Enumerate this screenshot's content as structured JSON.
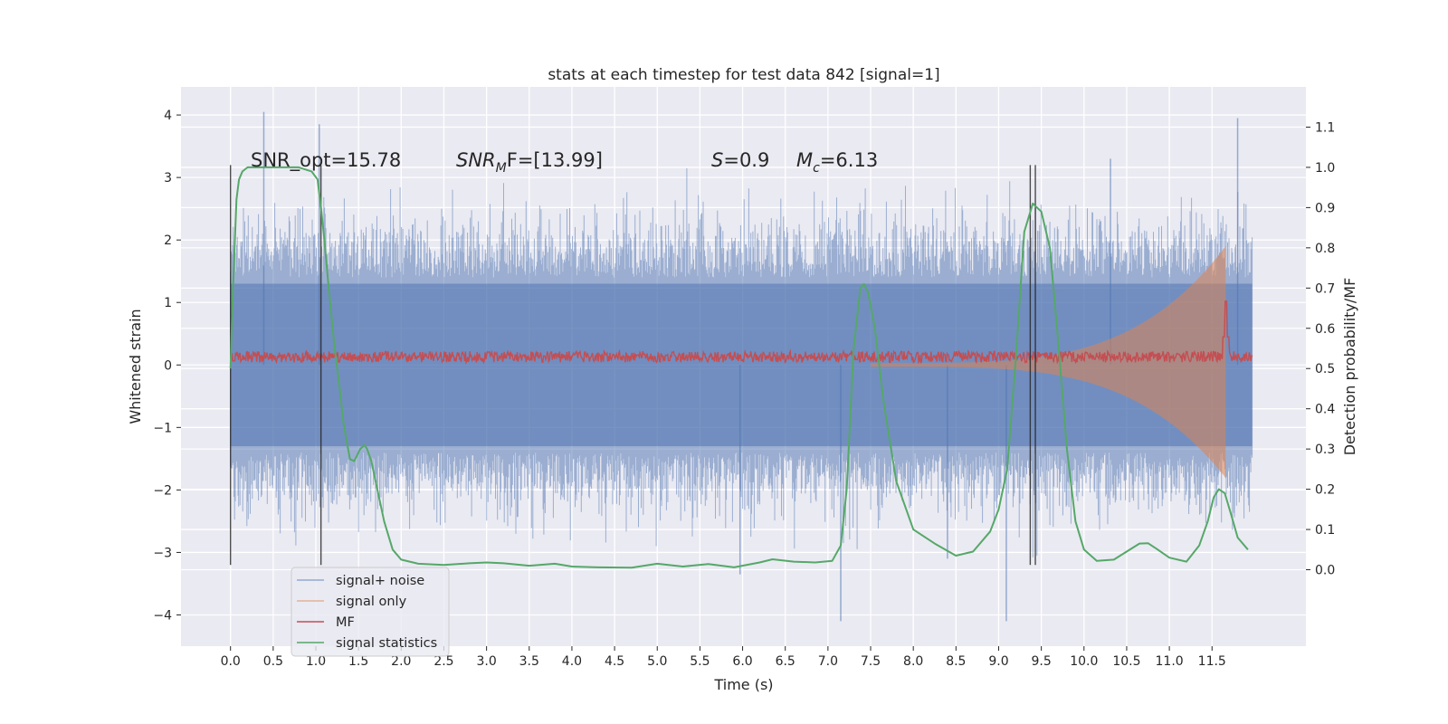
{
  "chart_data": {
    "type": "line",
    "title": "stats at each timestep for test data 842 [signal=1]",
    "xlabel": "Time (s)",
    "ylabel": "Whitened strain",
    "y2label": "Detection probability/MF",
    "xlim": [
      -0.58,
      12.6
    ],
    "ylim": [
      -4.5,
      4.45
    ],
    "y2lim": [
      -0.19,
      1.2
    ],
    "x_ticks": [
      0.0,
      0.5,
      1.0,
      1.5,
      2.0,
      2.5,
      3.0,
      3.5,
      4.0,
      4.5,
      5.0,
      5.5,
      6.0,
      6.5,
      7.0,
      7.5,
      8.0,
      8.5,
      9.0,
      9.5,
      10.0,
      10.5,
      11.0,
      11.5
    ],
    "x_tick_labels": [
      "0.0",
      "0.5",
      "1.0",
      "1.5",
      "2.0",
      "2.5",
      "3.0",
      "3.5",
      "4.0",
      "4.5",
      "5.0",
      "5.5",
      "6.0",
      "6.5",
      "7.0",
      "7.5",
      "8.0",
      "8.5",
      "9.0",
      "9.5",
      "10.0",
      "10.5",
      "11.0",
      "11.5"
    ],
    "y_ticks": [
      -4,
      -3,
      -2,
      -1,
      0,
      1,
      2,
      3,
      4
    ],
    "y_tick_labels": [
      "−4",
      "−3",
      "−2",
      "−1",
      "0",
      "1",
      "2",
      "3",
      "4"
    ],
    "y2_ticks": [
      0.0,
      0.1,
      0.2,
      0.3,
      0.4,
      0.5,
      0.6,
      0.7,
      0.8,
      0.9,
      1.0,
      1.1
    ],
    "y2_tick_labels": [
      "0.0",
      "0.1",
      "0.2",
      "0.3",
      "0.4",
      "0.5",
      "0.6",
      "0.7",
      "0.8",
      "0.9",
      "1.0",
      "1.1"
    ],
    "grid": true,
    "legend_position": "bottom-left",
    "annotations": {
      "snr_opt": "SNR_opt=15.78",
      "snr_mf_base": "SNR",
      "snr_mf_sub": "M",
      "snr_mf_rest": "F=[13.99]",
      "s_label": "S",
      "s_value": "=0.9",
      "mc_label": "M",
      "mc_sub": "c",
      "mc_value": "=6.13"
    },
    "vertical_markers_x": [
      0.0,
      1.06,
      9.37,
      9.43
    ],
    "vertical_marker_range": [
      -3.2,
      3.2
    ],
    "series": [
      {
        "name": "signal+ noise",
        "axis": "left",
        "color": "#4c72b0",
        "description_envelope": {
          "x_range": [
            0.0,
            11.97
          ],
          "core_band": [
            -1.3,
            1.3
          ],
          "peak_up": 4.05,
          "peak_down": -4.1
        },
        "notable_spikes": [
          {
            "x": 0.39,
            "y": 4.05
          },
          {
            "x": 1.04,
            "y": 3.85
          },
          {
            "x": 10.31,
            "y": 3.3
          },
          {
            "x": 11.8,
            "y": 3.95
          },
          {
            "x": 7.15,
            "y": -4.1
          },
          {
            "x": 9.09,
            "y": -4.1
          },
          {
            "x": 5.97,
            "y": -3.35
          },
          {
            "x": 8.4,
            "y": -3.1
          }
        ]
      },
      {
        "name": "signal only",
        "axis": "left",
        "color": "#dd8452",
        "chirp": {
          "start_x": 7.5,
          "end_x": 11.66,
          "amp_start": 0.03,
          "amp_end": 1.9
        }
      },
      {
        "name": "MF",
        "axis": "left",
        "color": "#c44e52",
        "baseline_band": [
          0.04,
          0.22
        ],
        "peak": {
          "x": 11.66,
          "y": 1.02
        }
      },
      {
        "name": "signal statistics",
        "axis": "right",
        "color": "#55a868",
        "x": [
          0.0,
          0.03,
          0.07,
          0.1,
          0.14,
          0.2,
          0.3,
          0.4,
          0.6,
          0.8,
          0.95,
          1.02,
          1.06,
          1.1,
          1.15,
          1.22,
          1.28,
          1.32,
          1.36,
          1.4,
          1.45,
          1.52,
          1.57,
          1.6,
          1.65,
          1.7,
          1.8,
          1.9,
          2.0,
          2.2,
          2.5,
          2.8,
          3.0,
          3.2,
          3.5,
          3.8,
          4.0,
          4.3,
          4.7,
          5.0,
          5.3,
          5.6,
          5.9,
          6.2,
          6.35,
          6.6,
          6.85,
          7.05,
          7.15,
          7.22,
          7.3,
          7.38,
          7.42,
          7.47,
          7.55,
          7.65,
          7.8,
          8.0,
          8.25,
          8.5,
          8.7,
          8.9,
          9.0,
          9.1,
          9.2,
          9.3,
          9.4,
          9.5,
          9.6,
          9.7,
          9.8,
          9.9,
          10.0,
          10.15,
          10.35,
          10.5,
          10.65,
          10.75,
          10.85,
          11.0,
          11.2,
          11.35,
          11.45,
          11.52,
          11.58,
          11.65,
          11.72,
          11.8,
          11.92
        ],
        "values": [
          0.5,
          0.7,
          0.92,
          0.97,
          0.99,
          1.0,
          1.0,
          1.0,
          1.0,
          1.0,
          0.99,
          0.97,
          0.9,
          0.82,
          0.7,
          0.55,
          0.45,
          0.37,
          0.32,
          0.275,
          0.27,
          0.3,
          0.31,
          0.3,
          0.27,
          0.22,
          0.12,
          0.05,
          0.025,
          0.015,
          0.012,
          0.016,
          0.018,
          0.016,
          0.01,
          0.015,
          0.008,
          0.006,
          0.005,
          0.015,
          0.008,
          0.014,
          0.006,
          0.018,
          0.026,
          0.02,
          0.018,
          0.022,
          0.06,
          0.2,
          0.55,
          0.7,
          0.71,
          0.69,
          0.6,
          0.42,
          0.22,
          0.1,
          0.065,
          0.035,
          0.045,
          0.095,
          0.15,
          0.25,
          0.52,
          0.84,
          0.91,
          0.89,
          0.8,
          0.56,
          0.3,
          0.12,
          0.05,
          0.022,
          0.025,
          0.045,
          0.065,
          0.066,
          0.052,
          0.03,
          0.02,
          0.06,
          0.12,
          0.18,
          0.2,
          0.19,
          0.14,
          0.08,
          0.05
        ]
      }
    ]
  }
}
